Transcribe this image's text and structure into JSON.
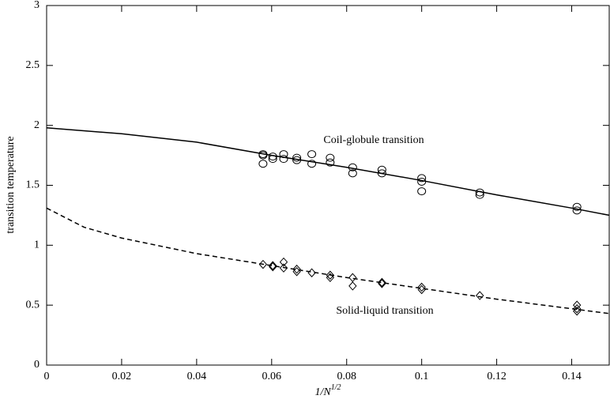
{
  "chart_data": {
    "type": "scatter",
    "xlabel": {
      "base": "1/N",
      "sup": "1/2"
    },
    "ylabel": "transition temperature",
    "xlim": [
      0,
      0.15
    ],
    "ylim": [
      0,
      3
    ],
    "xticks": [
      0,
      0.02,
      0.04,
      0.06,
      0.08,
      0.1,
      0.12,
      0.14
    ],
    "yticks": [
      0,
      0.5,
      1,
      1.5,
      2,
      2.5,
      3
    ],
    "annotations": [
      "Coil-globule transition",
      "Solid-liquid transition"
    ],
    "series": [
      {
        "marker": "circle",
        "color": "#000000",
        "x": [
          0.0577,
          0.0577,
          0.0577,
          0.0603,
          0.0603,
          0.0632,
          0.0632,
          0.0667,
          0.0667,
          0.0707,
          0.0707,
          0.0756,
          0.0756,
          0.0816,
          0.0816,
          0.0894,
          0.0894,
          0.1,
          0.1,
          0.1,
          0.1155,
          0.1155,
          0.1414,
          0.1414
        ],
        "values": [
          1.76,
          1.75,
          1.68,
          1.74,
          1.72,
          1.76,
          1.72,
          1.73,
          1.71,
          1.76,
          1.68,
          1.73,
          1.69,
          1.65,
          1.6,
          1.63,
          1.6,
          1.56,
          1.53,
          1.45,
          1.44,
          1.42,
          1.32,
          1.29
        ]
      },
      {
        "marker": "diamond",
        "color": "#000000",
        "x": [
          0.0577,
          0.0603,
          0.0603,
          0.0632,
          0.0632,
          0.0667,
          0.0667,
          0.0707,
          0.0756,
          0.0756,
          0.0816,
          0.0816,
          0.0894,
          0.0894,
          0.1,
          0.1,
          0.1155,
          0.1414,
          0.1414,
          0.1414
        ],
        "values": [
          0.84,
          0.83,
          0.82,
          0.86,
          0.81,
          0.8,
          0.78,
          0.77,
          0.75,
          0.73,
          0.73,
          0.66,
          0.69,
          0.68,
          0.65,
          0.63,
          0.58,
          0.5,
          0.47,
          0.45
        ]
      },
      {
        "line_style": "solid",
        "color": "#000000",
        "x": [
          0,
          0.02,
          0.04,
          0.06,
          0.08,
          0.1,
          0.12,
          0.14,
          0.15
        ],
        "values": [
          1.98,
          1.93,
          1.86,
          1.75,
          1.65,
          1.54,
          1.42,
          1.31,
          1.25
        ]
      },
      {
        "line_style": "dashed",
        "color": "#000000",
        "x": [
          0,
          0.01,
          0.02,
          0.04,
          0.06,
          0.08,
          0.1,
          0.12,
          0.14,
          0.15
        ],
        "values": [
          1.31,
          1.15,
          1.06,
          0.93,
          0.83,
          0.73,
          0.64,
          0.55,
          0.47,
          0.43
        ]
      }
    ]
  }
}
